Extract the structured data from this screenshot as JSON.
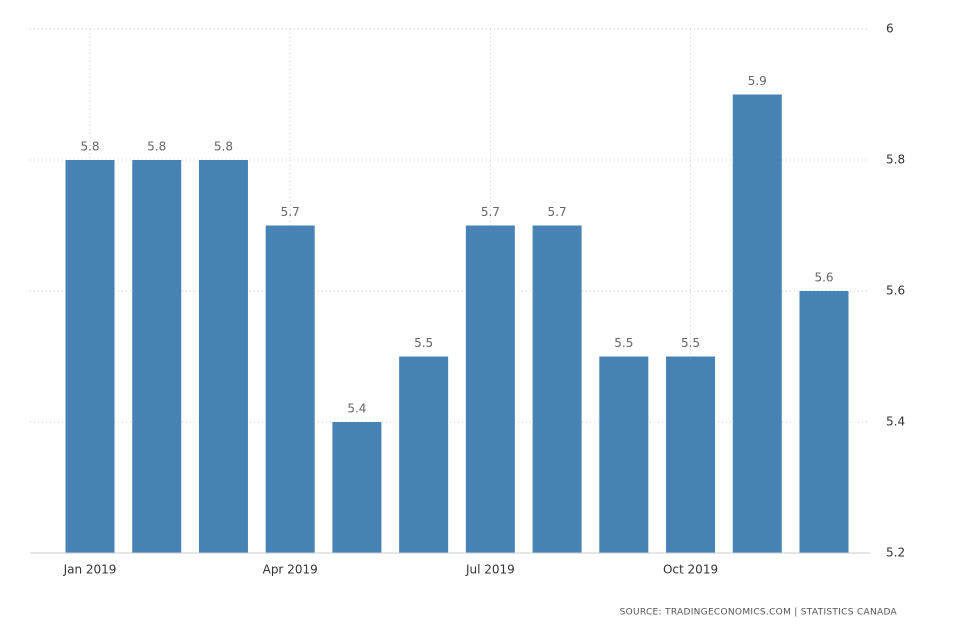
{
  "chart_data": {
    "type": "bar",
    "categories": [
      "Jan 2019",
      null,
      null,
      "Apr 2019",
      null,
      null,
      "Jul 2019",
      null,
      null,
      "Oct 2019",
      null,
      null
    ],
    "values": [
      5.8,
      5.8,
      5.8,
      5.7,
      5.4,
      5.5,
      5.7,
      5.7,
      5.5,
      5.5,
      5.9,
      5.6
    ],
    "color": "#4682b4",
    "ylim": [
      5.2,
      6
    ],
    "yticks": [
      5.2,
      5.4,
      5.6,
      5.8,
      6
    ],
    "grid": true,
    "source": "SOURCE: TRADINGECONOMICS.COM | STATISTICS CANADA"
  }
}
